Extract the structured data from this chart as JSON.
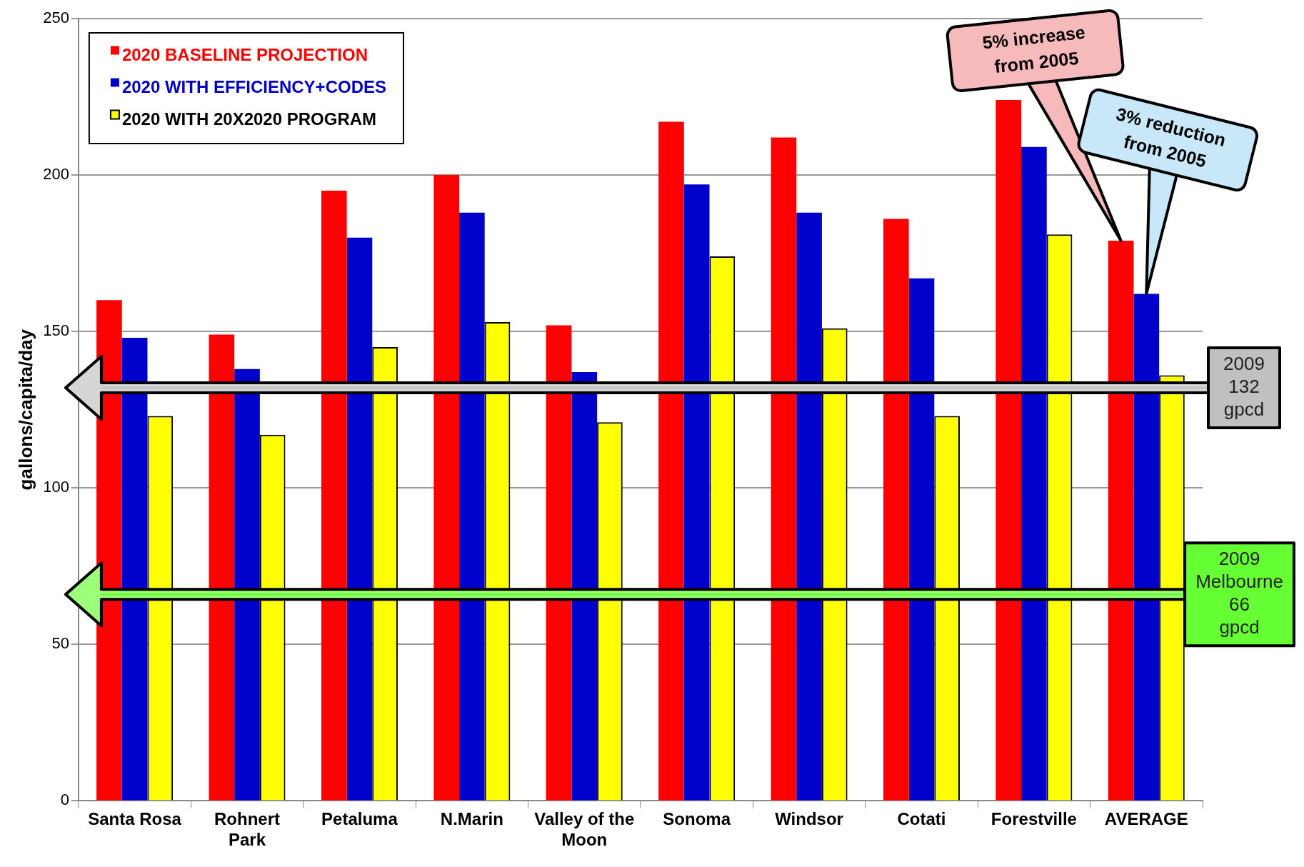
{
  "chart_data": {
    "type": "bar",
    "ylabel": "gallons/capita/day",
    "categories": [
      "Santa Rosa",
      "Rohnert Park",
      "Petaluma",
      "N.Marin",
      "Valley of the Moon",
      "Sonoma",
      "Windsor",
      "Cotati",
      "Forestville",
      "AVERAGE"
    ],
    "series": [
      {
        "name": "2020 BASELINE PROJECTION",
        "color": "#ff0000",
        "values": [
          160,
          149,
          195,
          200,
          152,
          217,
          212,
          186,
          224,
          179
        ]
      },
      {
        "name": "2020 WITH EFFICIENCY+CODES",
        "color": "#0000cc",
        "values": [
          148,
          138,
          180,
          188,
          137,
          197,
          188,
          167,
          209,
          162
        ]
      },
      {
        "name": "2020 WITH 20X2020 PROGRAM",
        "color": "#ffff00",
        "values": [
          123,
          117,
          145,
          153,
          121,
          174,
          151,
          123,
          181,
          136
        ]
      }
    ],
    "ylim": [
      0,
      250
    ],
    "yticks": [
      0,
      50,
      100,
      150,
      200,
      250
    ],
    "grid": "y",
    "legend": "top left",
    "ref_lines": [
      {
        "axis": "y",
        "value": 132,
        "label": "2009 132 gpcd",
        "color": "#c0c0c0"
      },
      {
        "axis": "y",
        "value": 66,
        "label": "2009 Melbourne 66 gpcd",
        "color": "#66ff33"
      }
    ],
    "annotations": [
      "5% increase from 2005",
      "3% reduction from 2005"
    ]
  }
}
